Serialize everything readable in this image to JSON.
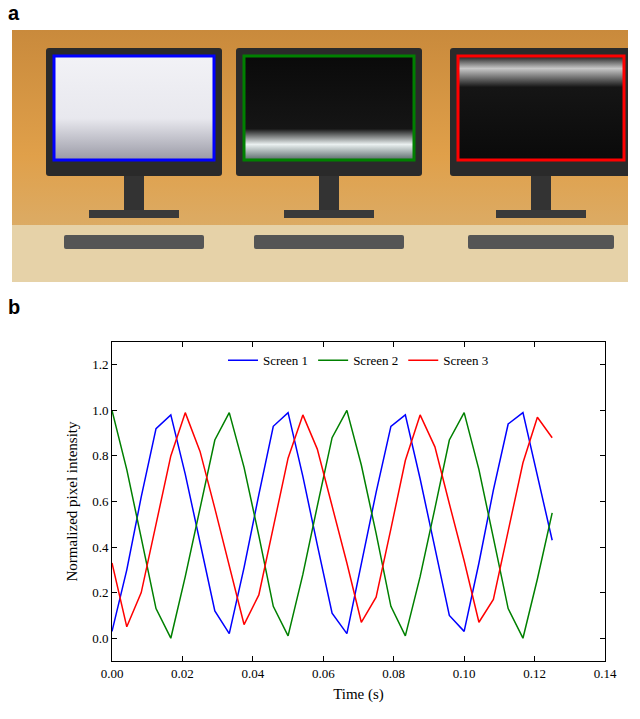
{
  "panels": [
    {
      "label": "a"
    },
    {
      "label": "b"
    }
  ],
  "chart_data": {
    "type": "line",
    "x_label": "Time (s)",
    "y_label": "Normalized pixel intensity",
    "x": [
      0,
      0.0042,
      0.0083,
      0.0125,
      0.0167,
      0.0208,
      0.025,
      0.0292,
      0.0333,
      0.0375,
      0.0417,
      0.0458,
      0.05,
      0.0542,
      0.0583,
      0.0625,
      0.0667,
      0.0708,
      0.075,
      0.0792,
      0.0833,
      0.0875,
      0.0917,
      0.0958,
      0.1,
      0.1042,
      0.1083,
      0.1125,
      0.1167,
      0.1208,
      0.125
    ],
    "series": [
      {
        "name": "Screen 1",
        "color": "#0000ff",
        "values": [
          0.03,
          0.3,
          0.62,
          0.92,
          0.98,
          0.72,
          0.42,
          0.12,
          0.02,
          0.31,
          0.63,
          0.93,
          0.99,
          0.71,
          0.41,
          0.11,
          0.02,
          0.32,
          0.64,
          0.93,
          0.98,
          0.7,
          0.4,
          0.1,
          0.03,
          0.33,
          0.65,
          0.94,
          0.99,
          0.71,
          0.43
        ]
      },
      {
        "name": "Screen 2",
        "color": "#008000",
        "values": [
          1.0,
          0.74,
          0.44,
          0.13,
          0.0,
          0.27,
          0.57,
          0.87,
          0.99,
          0.75,
          0.45,
          0.14,
          0.01,
          0.28,
          0.58,
          0.88,
          1.0,
          0.76,
          0.46,
          0.14,
          0.01,
          0.27,
          0.57,
          0.87,
          0.99,
          0.74,
          0.44,
          0.13,
          0.0,
          0.26,
          0.55
        ]
      },
      {
        "name": "Screen 3",
        "color": "#ff0000",
        "values": [
          0.33,
          0.05,
          0.2,
          0.5,
          0.8,
          0.99,
          0.82,
          0.57,
          0.32,
          0.06,
          0.19,
          0.49,
          0.79,
          0.98,
          0.83,
          0.58,
          0.33,
          0.07,
          0.18,
          0.48,
          0.78,
          0.98,
          0.84,
          0.59,
          0.34,
          0.07,
          0.17,
          0.47,
          0.77,
          0.97,
          0.88
        ]
      }
    ],
    "xlim": [
      0,
      0.14
    ],
    "xticks": [
      {
        "value": 0,
        "label": "0.00"
      },
      {
        "value": 0.02,
        "label": "0.02"
      },
      {
        "value": 0.04,
        "label": "0.04"
      },
      {
        "value": 0.06,
        "label": "0.06"
      },
      {
        "value": 0.08,
        "label": "0.08"
      },
      {
        "value": 0.1,
        "label": "0.10"
      },
      {
        "value": 0.12,
        "label": "0.12"
      },
      {
        "value": 0.14,
        "label": "0.14"
      }
    ],
    "ylim": [
      -0.1,
      1.3
    ],
    "yticks": [
      {
        "value": 0,
        "label": "0.0"
      },
      {
        "value": 0.2,
        "label": "0.2"
      },
      {
        "value": 0.4,
        "label": "0.4"
      },
      {
        "value": 0.6,
        "label": "0.6"
      },
      {
        "value": 0.8,
        "label": "0.8"
      },
      {
        "value": 1,
        "label": "1.0"
      },
      {
        "value": 1.2,
        "label": "1.2"
      }
    ],
    "grid": false,
    "legend": "top"
  }
}
